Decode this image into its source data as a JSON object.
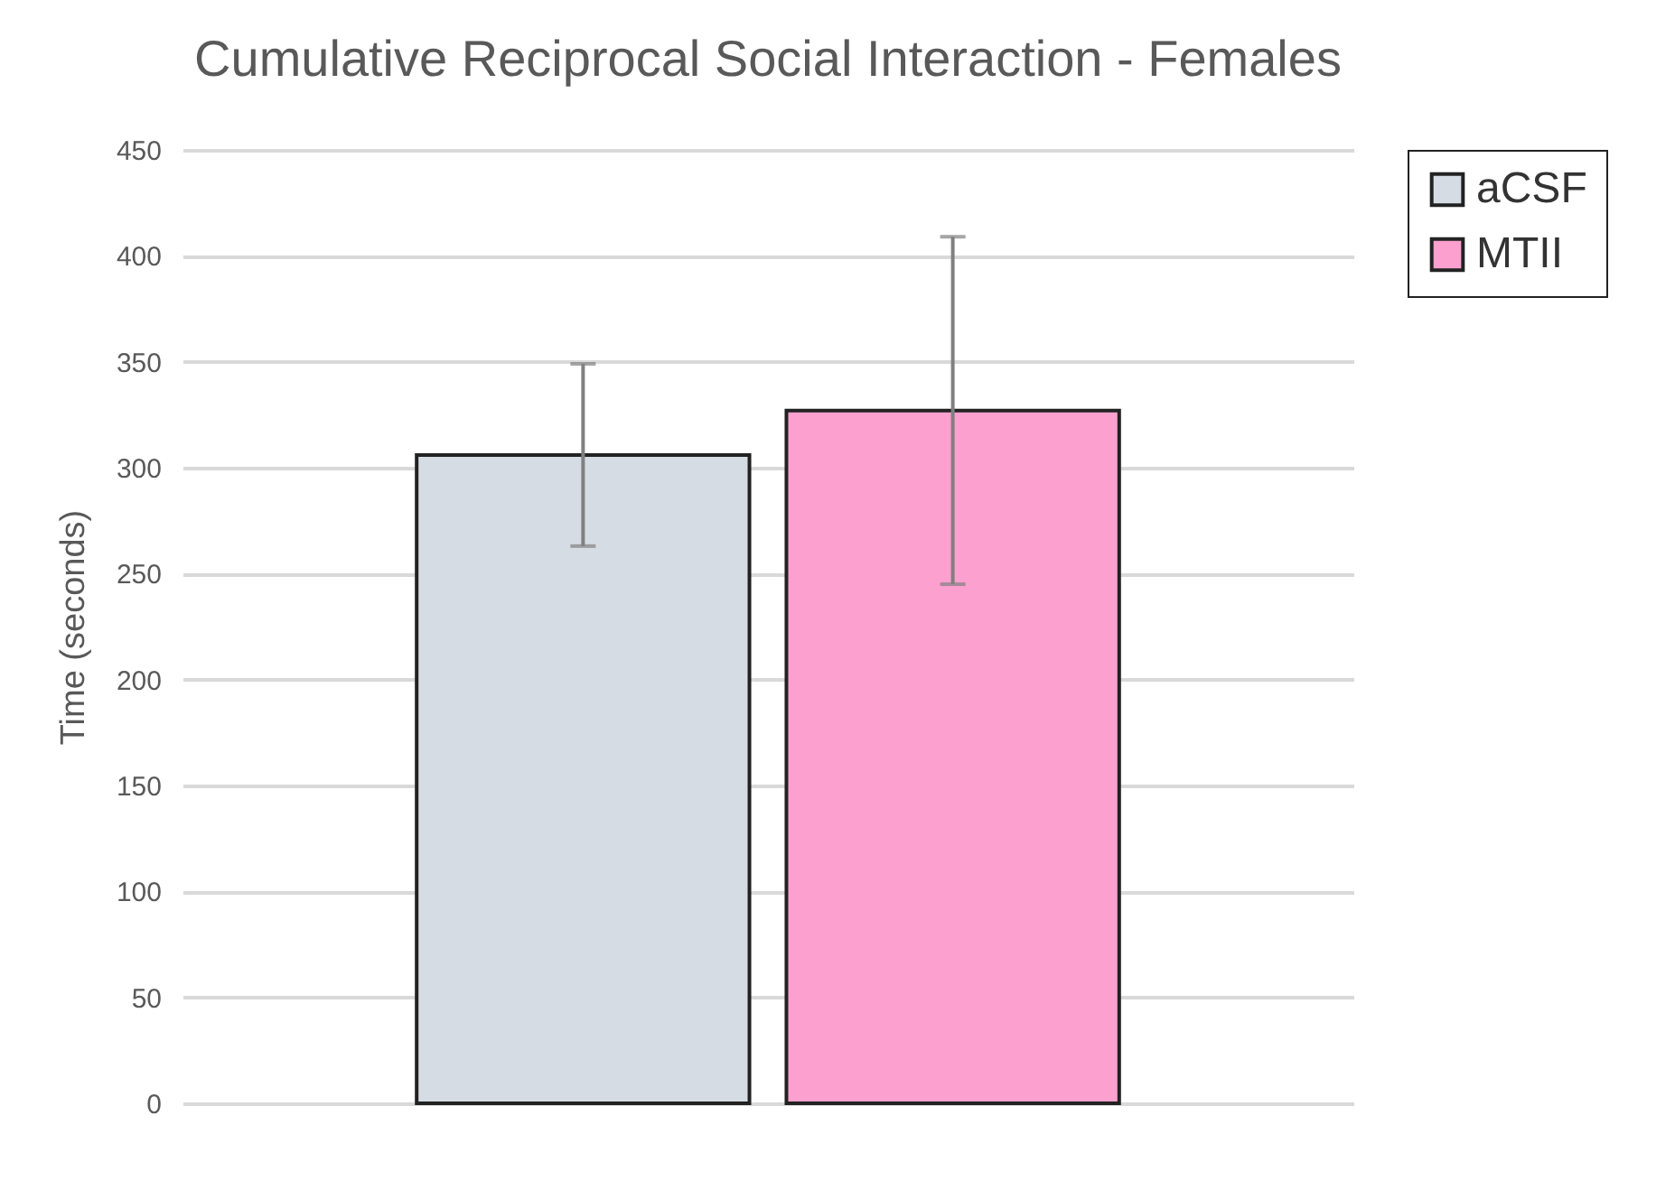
{
  "chart_data": {
    "type": "bar",
    "title": "Cumulative Reciprocal Social Interaction - Females",
    "ylabel": "Time (seconds)",
    "categories": [
      null
    ],
    "series": [
      {
        "name": "aCSF",
        "color": "#d6dce4",
        "values": [
          306
        ],
        "errors": [
          [
            263,
            349
          ]
        ]
      },
      {
        "name": "MTII",
        "color": "#fba0cf",
        "values": [
          327
        ],
        "errors": [
          [
            245,
            409
          ]
        ]
      }
    ],
    "ylim": [
      0,
      450
    ],
    "yticks": [
      0,
      50,
      100,
      150,
      200,
      250,
      300,
      350,
      400,
      450
    ],
    "grid": "y",
    "legend": "right"
  }
}
